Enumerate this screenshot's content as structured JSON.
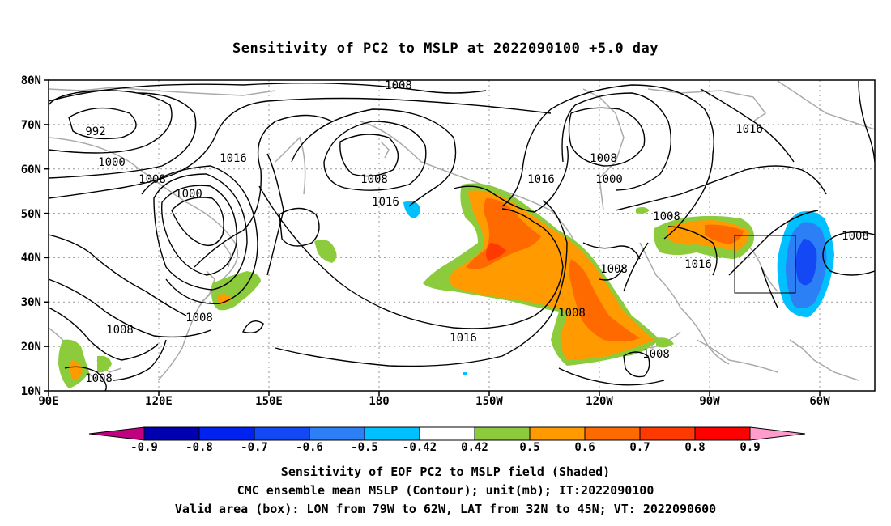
{
  "title": "Sensitivity of PC2 to MSLP at 2022090100 +5.0 day",
  "lat_labels": [
    "80N",
    "70N",
    "60N",
    "50N",
    "40N",
    "30N",
    "20N",
    "10N"
  ],
  "lon_labels": [
    "90E",
    "120E",
    "150E",
    "180",
    "150W",
    "120W",
    "90W",
    "60W"
  ],
  "contour_labels": [
    "1008",
    "992",
    "1000",
    "1016",
    "1008",
    "1000",
    "1016",
    "1008",
    "1008",
    "1016",
    "1000",
    "1016",
    "1008",
    "1008",
    "1016",
    "1008",
    "1008",
    "1008",
    "1008",
    "1016",
    "1008",
    "1008"
  ],
  "colorbar": {
    "tick_labels": [
      "-0.9",
      "-0.8",
      "-0.7",
      "-0.6",
      "-0.5",
      "-0.42",
      "0.42",
      "0.5",
      "0.6",
      "0.7",
      "0.8",
      "0.9"
    ],
    "colors": [
      "#c0007f",
      "#0000b0",
      "#0022f0",
      "#1448f5",
      "#2c7ff5",
      "#00c0ff",
      "#ffffff",
      "#8ccc3c",
      "#ff9a00",
      "#ff6a00",
      "#ff3a00",
      "#ff0000",
      "#ff9ccc"
    ]
  },
  "valid_box": {
    "lon_from": "79W",
    "lon_to": "62W",
    "lat_from": "32N",
    "lat_to": "45N"
  },
  "footer": {
    "line1": "Sensitivity of EOF PC2 to MSLP field (Shaded)",
    "line2": "CMC ensemble mean MSLP (Contour); unit(mb); IT:2022090100",
    "line3": "Valid area (box): LON from 79W to 62W, LAT from 32N to 45N; VT: 2022090600"
  },
  "colors": {
    "land": "#aaaaaa",
    "contour": "#000000",
    "grid": "#999999"
  }
}
